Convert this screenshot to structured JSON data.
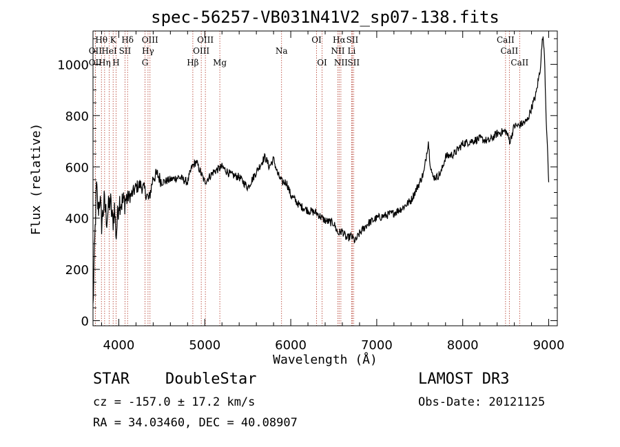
{
  "chart_data": {
    "type": "line",
    "title": "spec-56257-VB031N41V2_sp07-138.fits",
    "xlabel": "Wavelength (Å)",
    "ylabel": "Flux (relative)",
    "xlim": [
      3700,
      9100
    ],
    "ylim": [
      -20,
      1130
    ],
    "xticks": [
      4000,
      5000,
      6000,
      7000,
      8000,
      9000
    ],
    "yticks": [
      0,
      200,
      400,
      600,
      800,
      1000
    ],
    "series": [
      {
        "name": "flux",
        "x": [
          3700,
          3720,
          3740,
          3760,
          3780,
          3800,
          3830,
          3860,
          3900,
          3930,
          3950,
          3970,
          4000,
          4050,
          4100,
          4150,
          4200,
          4250,
          4300,
          4350,
          4400,
          4450,
          4500,
          4600,
          4700,
          4800,
          4850,
          4900,
          4950,
          5000,
          5100,
          5200,
          5300,
          5400,
          5500,
          5600,
          5700,
          5750,
          5800,
          5850,
          5900,
          5950,
          6000,
          6100,
          6200,
          6300,
          6400,
          6500,
          6550,
          6600,
          6650,
          6700,
          6750,
          6800,
          6900,
          7000,
          7100,
          7200,
          7300,
          7400,
          7500,
          7550,
          7600,
          7620,
          7650,
          7700,
          7750,
          7800,
          7900,
          8000,
          8100,
          8200,
          8300,
          8400,
          8500,
          8550,
          8600,
          8650,
          8700,
          8750,
          8800,
          8850,
          8900,
          8930,
          8950,
          8970,
          9000
        ],
        "y": [
          50,
          300,
          520,
          430,
          480,
          380,
          460,
          400,
          470,
          380,
          440,
          330,
          470,
          460,
          480,
          490,
          520,
          530,
          510,
          470,
          560,
          570,
          540,
          550,
          560,
          540,
          600,
          620,
          580,
          540,
          580,
          600,
          570,
          560,
          520,
          580,
          640,
          600,
          630,
          570,
          540,
          540,
          490,
          450,
          430,
          420,
          390,
          380,
          340,
          350,
          320,
          330,
          310,
          340,
          380,
          400,
          410,
          420,
          440,
          470,
          540,
          580,
          700,
          620,
          560,
          560,
          580,
          640,
          650,
          690,
          700,
          710,
          700,
          730,
          740,
          700,
          760,
          760,
          770,
          780,
          830,
          880,
          980,
          1110,
          1050,
          800,
          540
        ]
      }
    ],
    "spectral_lines": [
      {
        "label": "Hθ",
        "x": 3798,
        "row": 1
      },
      {
        "label": "K",
        "x": 3934,
        "row": 1
      },
      {
        "label": "Hδ",
        "x": 4102,
        "row": 1
      },
      {
        "label": "OIII",
        "x": 4363,
        "row": 1
      },
      {
        "label": "OIII",
        "x": 5007,
        "row": 1
      },
      {
        "label": "OI",
        "x": 6300,
        "row": 1
      },
      {
        "label": "Hα",
        "x": 6563,
        "row": 1
      },
      {
        "label": "SII",
        "x": 6716,
        "row": 1
      },
      {
        "label": "CaII",
        "x": 8498,
        "row": 1
      },
      {
        "label": "OII",
        "x": 3727,
        "row": 2
      },
      {
        "label": "HeI",
        "x": 3889,
        "row": 2
      },
      {
        "label": "SII",
        "x": 4072,
        "row": 2
      },
      {
        "label": "Hγ",
        "x": 4340,
        "row": 2
      },
      {
        "label": "OIII",
        "x": 4959,
        "row": 2
      },
      {
        "label": "Na",
        "x": 5893,
        "row": 2
      },
      {
        "label": "NII",
        "x": 6548,
        "row": 2
      },
      {
        "label": "Li",
        "x": 6708,
        "row": 2
      },
      {
        "label": "CaII",
        "x": 8542,
        "row": 2
      },
      {
        "label": "OII",
        "x": 3727,
        "row": 3
      },
      {
        "label": "Hη",
        "x": 3835,
        "row": 3
      },
      {
        "label": "H",
        "x": 3968,
        "row": 3
      },
      {
        "label": "G",
        "x": 4305,
        "row": 3
      },
      {
        "label": "Hβ",
        "x": 4861,
        "row": 3
      },
      {
        "label": "Mg",
        "x": 5175,
        "row": 3
      },
      {
        "label": "OI",
        "x": 6364,
        "row": 3
      },
      {
        "label": "NII",
        "x": 6583,
        "row": 3
      },
      {
        "label": "SII",
        "x": 6731,
        "row": 3
      },
      {
        "label": "CaII",
        "x": 8662,
        "row": 3
      }
    ]
  },
  "info": {
    "class": "STAR",
    "subclass": "DoubleStar",
    "survey": "LAMOST DR3",
    "cz": "cz = -157.0 ± 17.2 km/s",
    "obs_date": "Obs-Date: 20121125",
    "radec": "RA =  34.03460, DEC =  40.08907"
  }
}
